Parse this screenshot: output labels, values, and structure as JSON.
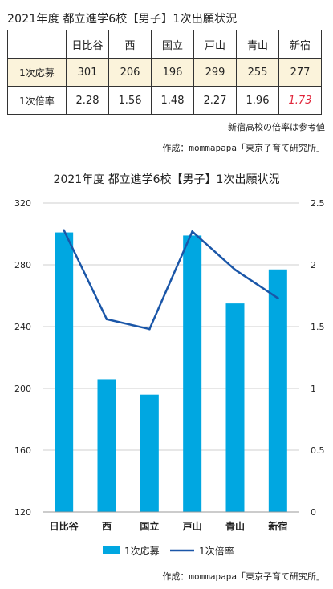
{
  "title": "2021年度 都立進学6校【男子】1次出願状況",
  "table": {
    "columns": [
      "日比谷",
      "西",
      "国立",
      "戸山",
      "青山",
      "新宿"
    ],
    "rows": [
      {
        "label": "1次応募",
        "values": [
          "301",
          "206",
          "196",
          "299",
          "255",
          "277"
        ]
      },
      {
        "label": "1次倍率",
        "values": [
          "2.28",
          "1.56",
          "1.48",
          "2.27",
          "1.96",
          "1.73"
        ]
      }
    ]
  },
  "note": "新宿高校の倍率は参考値",
  "credit": "作成：mommapapa「東京子育て研究所」",
  "highlight_color": "#e0253a",
  "chart_data": {
    "type": "bar+line",
    "title": "2021年度 都立進学6校【男子】1次出願状況",
    "categories": [
      "日比谷",
      "西",
      "国立",
      "戸山",
      "青山",
      "新宿"
    ],
    "series": [
      {
        "name": "1次応募",
        "type": "bar",
        "axis": "left",
        "color": "#00a7e1",
        "values": [
          301,
          206,
          196,
          299,
          255,
          277
        ]
      },
      {
        "name": "1次倍率",
        "type": "line",
        "axis": "right",
        "color": "#1a56a8",
        "values": [
          2.28,
          1.56,
          1.48,
          2.27,
          1.96,
          1.73
        ]
      }
    ],
    "y_left": {
      "min": 120,
      "max": 320,
      "ticks": [
        "120",
        "160",
        "200",
        "240",
        "280",
        "320"
      ]
    },
    "y_right": {
      "min": 0,
      "max": 2.5,
      "ticks": [
        "0",
        "0.5",
        "1",
        "1.5",
        "2",
        "2.5"
      ]
    },
    "grid": true,
    "legend": "bottom"
  }
}
